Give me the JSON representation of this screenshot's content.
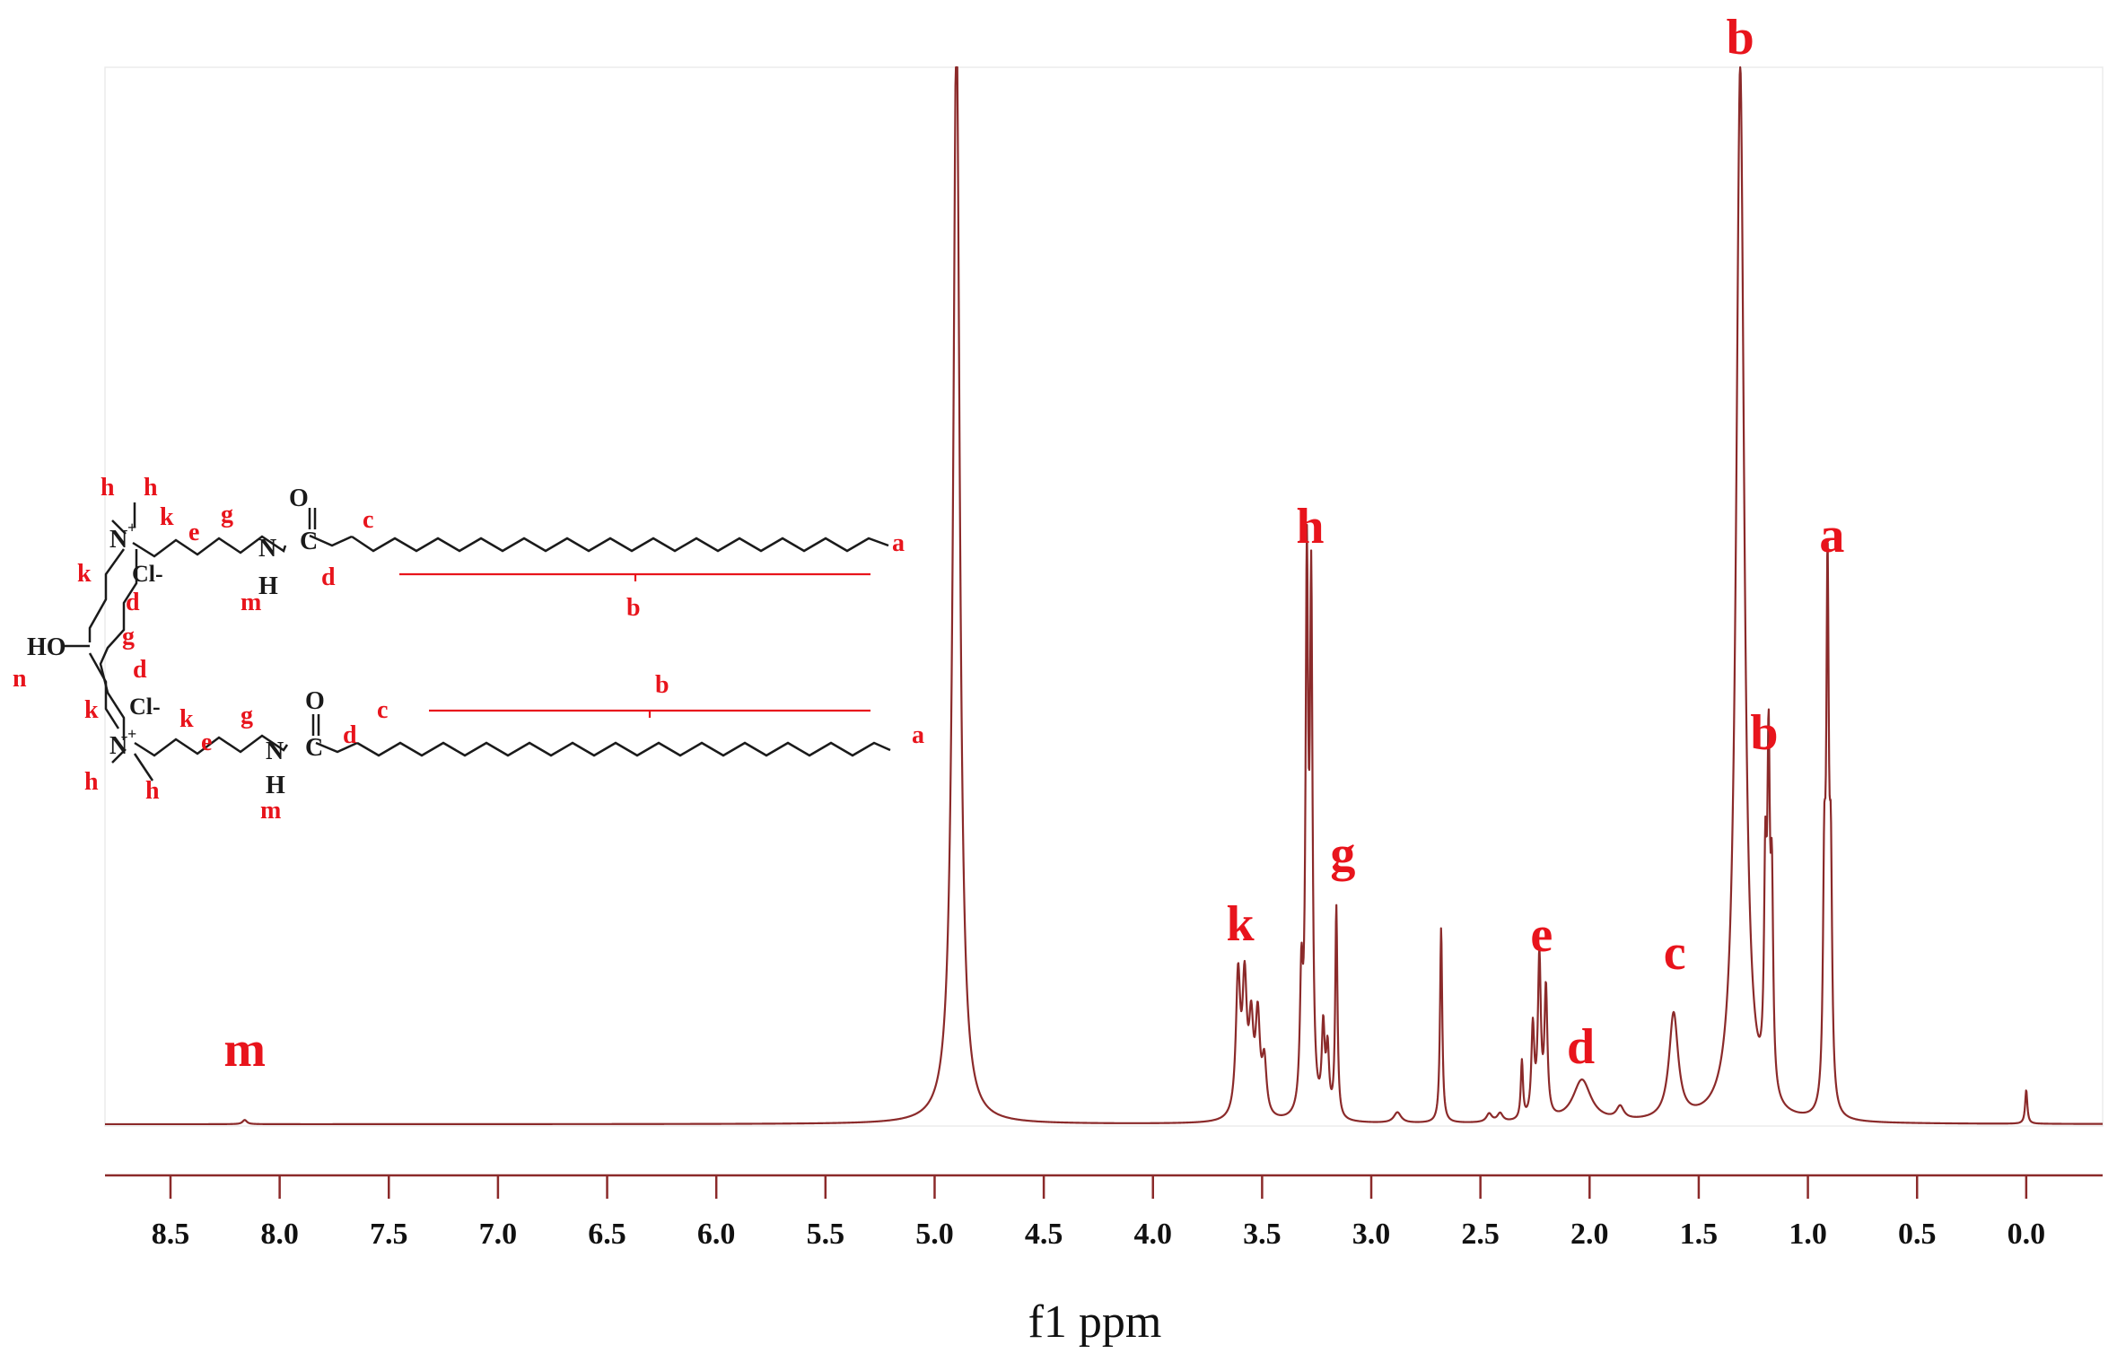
{
  "chart_data": {
    "type": "line",
    "xlabel": "f1 ppm",
    "xlim": [
      8.8,
      -0.35
    ],
    "x_reversed": true,
    "xticks": [
      "8.5",
      "8.0",
      "7.5",
      "7.0",
      "6.5",
      "6.0",
      "5.5",
      "5.0",
      "4.5",
      "4.0",
      "3.5",
      "3.0",
      "2.5",
      "2.0",
      "1.5",
      "1.0",
      "0.5",
      "0.0"
    ],
    "grid": false,
    "colors": {
      "spectrum": "#8b2a2a",
      "labels": "#e8141c",
      "axis": "#8b2a2a",
      "structure": "#1a1a1a"
    },
    "peaks": [
      {
        "ppm": 8.16,
        "height": 0.004,
        "width": 0.012
      },
      {
        "ppm": 4.9,
        "height": 1.05,
        "width": 0.018
      },
      {
        "ppm": 3.61,
        "height": 0.13,
        "width": 0.012
      },
      {
        "ppm": 3.58,
        "height": 0.12,
        "width": 0.012
      },
      {
        "ppm": 3.55,
        "height": 0.08,
        "width": 0.012
      },
      {
        "ppm": 3.52,
        "height": 0.09,
        "width": 0.012
      },
      {
        "ppm": 3.49,
        "height": 0.05,
        "width": 0.012
      },
      {
        "ppm": 3.32,
        "height": 0.12,
        "width": 0.008
      },
      {
        "ppm": 3.295,
        "height": 0.5,
        "width": 0.007
      },
      {
        "ppm": 3.275,
        "height": 0.48,
        "width": 0.007
      },
      {
        "ppm": 3.22,
        "height": 0.08,
        "width": 0.008
      },
      {
        "ppm": 3.2,
        "height": 0.06,
        "width": 0.008
      },
      {
        "ppm": 3.16,
        "height": 0.2,
        "width": 0.006
      },
      {
        "ppm": 2.88,
        "height": 0.01,
        "width": 0.02
      },
      {
        "ppm": 2.68,
        "height": 0.185,
        "width": 0.006
      },
      {
        "ppm": 2.46,
        "height": 0.008,
        "width": 0.015
      },
      {
        "ppm": 2.41,
        "height": 0.008,
        "width": 0.015
      },
      {
        "ppm": 2.31,
        "height": 0.055,
        "width": 0.006
      },
      {
        "ppm": 2.26,
        "height": 0.085,
        "width": 0.008
      },
      {
        "ppm": 2.23,
        "height": 0.15,
        "width": 0.008
      },
      {
        "ppm": 2.2,
        "height": 0.12,
        "width": 0.008
      },
      {
        "ppm": 2.035,
        "height": 0.04,
        "width": 0.05
      },
      {
        "ppm": 1.86,
        "height": 0.012,
        "width": 0.02
      },
      {
        "ppm": 1.615,
        "height": 0.1,
        "width": 0.025
      },
      {
        "ppm": 1.31,
        "height": 1.0,
        "width": 0.022
      },
      {
        "ppm": 1.195,
        "height": 0.19,
        "width": 0.007
      },
      {
        "ppm": 1.18,
        "height": 0.3,
        "width": 0.007
      },
      {
        "ppm": 1.165,
        "height": 0.18,
        "width": 0.007
      },
      {
        "ppm": 0.925,
        "height": 0.2,
        "width": 0.007
      },
      {
        "ppm": 0.91,
        "height": 0.48,
        "width": 0.007
      },
      {
        "ppm": 0.895,
        "height": 0.2,
        "width": 0.007
      },
      {
        "ppm": 0.0,
        "height": 0.032,
        "width": 0.006
      }
    ],
    "annotations": [
      {
        "text": "m",
        "ppm": 8.16
      },
      {
        "text": "k",
        "ppm": 3.6
      },
      {
        "text": "h",
        "ppm": 3.28
      },
      {
        "text": "g",
        "ppm": 3.13
      },
      {
        "text": "e",
        "ppm": 2.22
      },
      {
        "text": "d",
        "ppm": 2.04
      },
      {
        "text": "c",
        "ppm": 1.61
      },
      {
        "text": "b",
        "ppm": 1.31
      },
      {
        "text": "b",
        "ppm": 1.2
      },
      {
        "text": "a",
        "ppm": 0.89
      }
    ]
  },
  "structure": {
    "labels_top": [
      "h",
      "h",
      "k",
      "e",
      "g",
      "O",
      "c",
      "d",
      "m",
      "a",
      "b"
    ],
    "labels_bottom": [
      "k",
      "k",
      "e",
      "g",
      "O",
      "c",
      "d",
      "m",
      "h",
      "h",
      "a",
      "b"
    ],
    "labels_core": [
      "k",
      "d",
      "g",
      "d",
      "n"
    ],
    "atoms": {
      "n_plus": "N",
      "plus": "+",
      "cl": "Cl-",
      "nh": "N",
      "h": "H",
      "c": "C",
      "ho": "HO"
    }
  }
}
